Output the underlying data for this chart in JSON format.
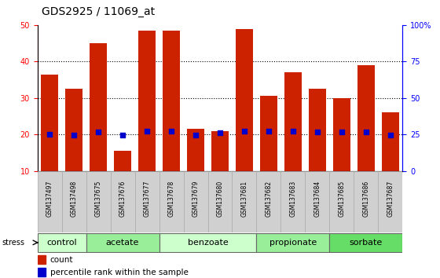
{
  "title": "GDS2925 / 11069_at",
  "samples": [
    "GSM137497",
    "GSM137498",
    "GSM137675",
    "GSM137676",
    "GSM137677",
    "GSM137678",
    "GSM137679",
    "GSM137680",
    "GSM137681",
    "GSM137682",
    "GSM137683",
    "GSM137684",
    "GSM137685",
    "GSM137686",
    "GSM137687"
  ],
  "counts": [
    36.5,
    32.5,
    45.0,
    15.5,
    48.5,
    48.5,
    21.5,
    21.0,
    49.0,
    30.5,
    37.0,
    32.5,
    30.0,
    39.0,
    26.0
  ],
  "percentile": [
    25.0,
    24.5,
    27.0,
    24.5,
    27.5,
    27.5,
    24.5,
    26.0,
    27.5,
    27.5,
    27.5,
    26.5,
    26.5,
    27.0,
    24.5
  ],
  "bar_color": "#cc2200",
  "dot_color": "#0000cc",
  "ylim_left": [
    10,
    50
  ],
  "ylim_right": [
    0,
    100
  ],
  "yticks_left": [
    10,
    20,
    30,
    40,
    50
  ],
  "yticks_right": [
    0,
    25,
    50,
    75,
    100
  ],
  "ytick_labels_right": [
    "0",
    "25",
    "50",
    "75",
    "100%"
  ],
  "groups": [
    {
      "label": "control",
      "start": 0,
      "end": 2,
      "color": "#ccffcc"
    },
    {
      "label": "acetate",
      "start": 2,
      "end": 5,
      "color": "#99ee99"
    },
    {
      "label": "benzoate",
      "start": 5,
      "end": 9,
      "color": "#ccffcc"
    },
    {
      "label": "propionate",
      "start": 9,
      "end": 12,
      "color": "#99ee99"
    },
    {
      "label": "sorbate",
      "start": 12,
      "end": 15,
      "color": "#66dd66"
    }
  ],
  "stress_label": "stress",
  "legend_count": "count",
  "legend_pct": "percentile rank within the sample",
  "bar_width": 0.7,
  "title_fontsize": 10,
  "tick_fontsize": 7,
  "group_fontsize": 8,
  "legend_fontsize": 7.5
}
